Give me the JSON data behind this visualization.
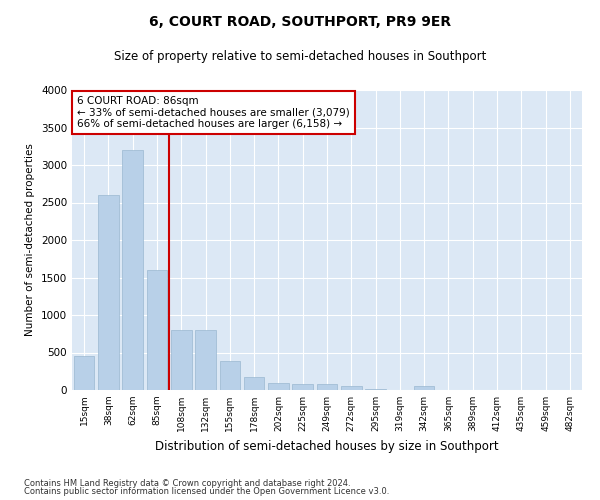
{
  "title1": "6, COURT ROAD, SOUTHPORT, PR9 9ER",
  "title2": "Size of property relative to semi-detached houses in Southport",
  "xlabel": "Distribution of semi-detached houses by size in Southport",
  "ylabel": "Number of semi-detached properties",
  "footer1": "Contains HM Land Registry data © Crown copyright and database right 2024.",
  "footer2": "Contains public sector information licensed under the Open Government Licence v3.0.",
  "annotation_title": "6 COURT ROAD: 86sqm",
  "annotation_line1": "← 33% of semi-detached houses are smaller (3,079)",
  "annotation_line2": "66% of semi-detached houses are larger (6,158) →",
  "bar_color": "#b8d0e8",
  "bar_edge_color": "#9ab8d0",
  "vline_color": "#cc0000",
  "background_color": "#dce8f5",
  "categories": [
    "15sqm",
    "38sqm",
    "62sqm",
    "85sqm",
    "108sqm",
    "132sqm",
    "155sqm",
    "178sqm",
    "202sqm",
    "225sqm",
    "249sqm",
    "272sqm",
    "295sqm",
    "319sqm",
    "342sqm",
    "365sqm",
    "389sqm",
    "412sqm",
    "435sqm",
    "459sqm",
    "482sqm"
  ],
  "values": [
    450,
    2600,
    3200,
    1600,
    800,
    800,
    390,
    175,
    95,
    80,
    80,
    48,
    10,
    5,
    50,
    5,
    5,
    5,
    5,
    5,
    5
  ],
  "ylim": [
    0,
    4000
  ],
  "yticks": [
    0,
    500,
    1000,
    1500,
    2000,
    2500,
    3000,
    3500,
    4000
  ],
  "property_bin": 3,
  "vline_x": 3.5
}
